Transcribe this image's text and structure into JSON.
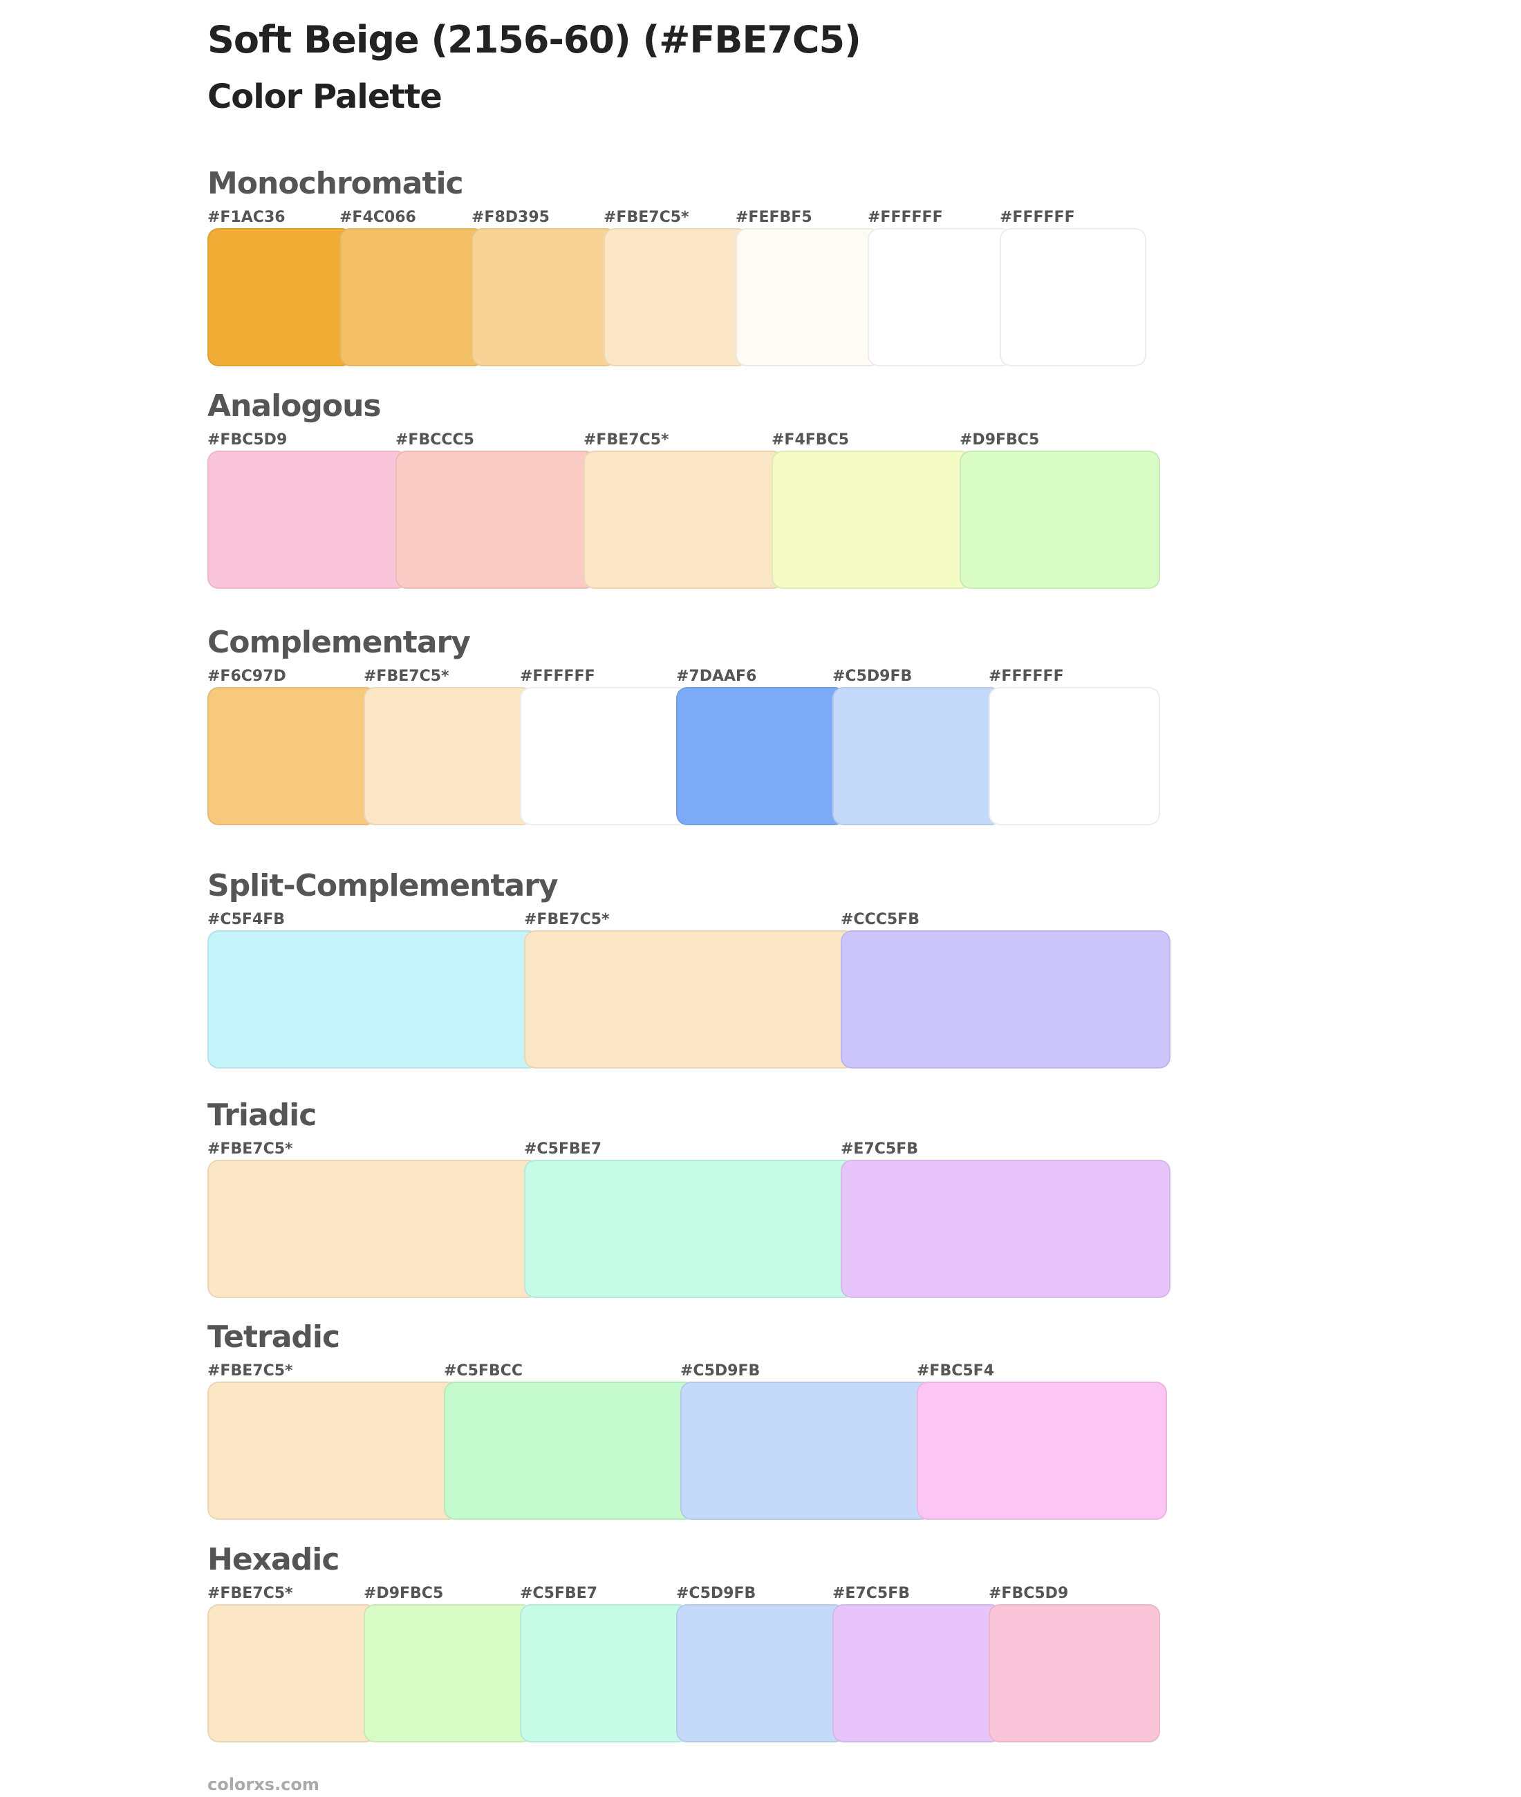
{
  "header": {
    "title": "Soft Beige (2156-60) (#FBE7C5)",
    "subtitle": "Color Palette"
  },
  "palettes": [
    {
      "name": "Monochromatic",
      "colors": [
        {
          "label": "#F1AC36",
          "hex": "#F1AC36"
        },
        {
          "label": "#F4C066",
          "hex": "#F4C066"
        },
        {
          "label": "#F8D395",
          "hex": "#F8D395"
        },
        {
          "label": "#FBE7C5*",
          "hex": "#FBE7C5"
        },
        {
          "label": "#FEFBF5",
          "hex": "#FEFBF5"
        },
        {
          "label": "#FFFFFF",
          "hex": "#FFFFFF"
        },
        {
          "label": "#FFFFFF",
          "hex": "#FFFFFF"
        }
      ]
    },
    {
      "name": "Analogous",
      "colors": [
        {
          "label": "#FBC5D9",
          "hex": "#FBC5D9"
        },
        {
          "label": "#FBCCC5",
          "hex": "#FBCCC5"
        },
        {
          "label": "#FBE7C5*",
          "hex": "#FBE7C5"
        },
        {
          "label": "#F4FBC5",
          "hex": "#F4FBC5"
        },
        {
          "label": "#D9FBC5",
          "hex": "#D9FBC5"
        }
      ]
    },
    {
      "name": "Complementary",
      "colors": [
        {
          "label": "#F6C97D",
          "hex": "#F6C97D"
        },
        {
          "label": "#FBE7C5*",
          "hex": "#FBE7C5"
        },
        {
          "label": "#FFFFFF",
          "hex": "#FFFFFF"
        },
        {
          "label": "#7DAAF6",
          "hex": "#7DAAF6"
        },
        {
          "label": "#C5D9FB",
          "hex": "#C5D9FB"
        },
        {
          "label": "#FFFFFF",
          "hex": "#FFFFFF"
        }
      ]
    },
    {
      "name": "Split-Complementary",
      "colors": [
        {
          "label": "#C5F4FB",
          "hex": "#C5F4FB"
        },
        {
          "label": "#FBE7C5*",
          "hex": "#FBE7C5"
        },
        {
          "label": "#CCC5FB",
          "hex": "#CCC5FB"
        }
      ]
    },
    {
      "name": "Triadic",
      "colors": [
        {
          "label": "#FBE7C5*",
          "hex": "#FBE7C5"
        },
        {
          "label": "#C5FBE7",
          "hex": "#C5FBE7"
        },
        {
          "label": "#E7C5FB",
          "hex": "#E7C5FB"
        }
      ]
    },
    {
      "name": "Tetradic",
      "colors": [
        {
          "label": "#FBE7C5*",
          "hex": "#FBE7C5"
        },
        {
          "label": "#C5FBCC",
          "hex": "#C5FBCC"
        },
        {
          "label": "#C5D9FB",
          "hex": "#C5D9FB"
        },
        {
          "label": "#FBC5F4",
          "hex": "#FBC5F4"
        }
      ]
    },
    {
      "name": "Hexadic",
      "colors": [
        {
          "label": "#FBE7C5*",
          "hex": "#FBE7C5"
        },
        {
          "label": "#D9FBC5",
          "hex": "#D9FBC5"
        },
        {
          "label": "#C5FBE7",
          "hex": "#C5FBE7"
        },
        {
          "label": "#C5D9FB",
          "hex": "#C5D9FB"
        },
        {
          "label": "#E7C5FB",
          "hex": "#E7C5FB"
        },
        {
          "label": "#FBC5D9",
          "hex": "#FBC5D9"
        }
      ]
    }
  ],
  "footer": {
    "site": "colorxs.com"
  }
}
